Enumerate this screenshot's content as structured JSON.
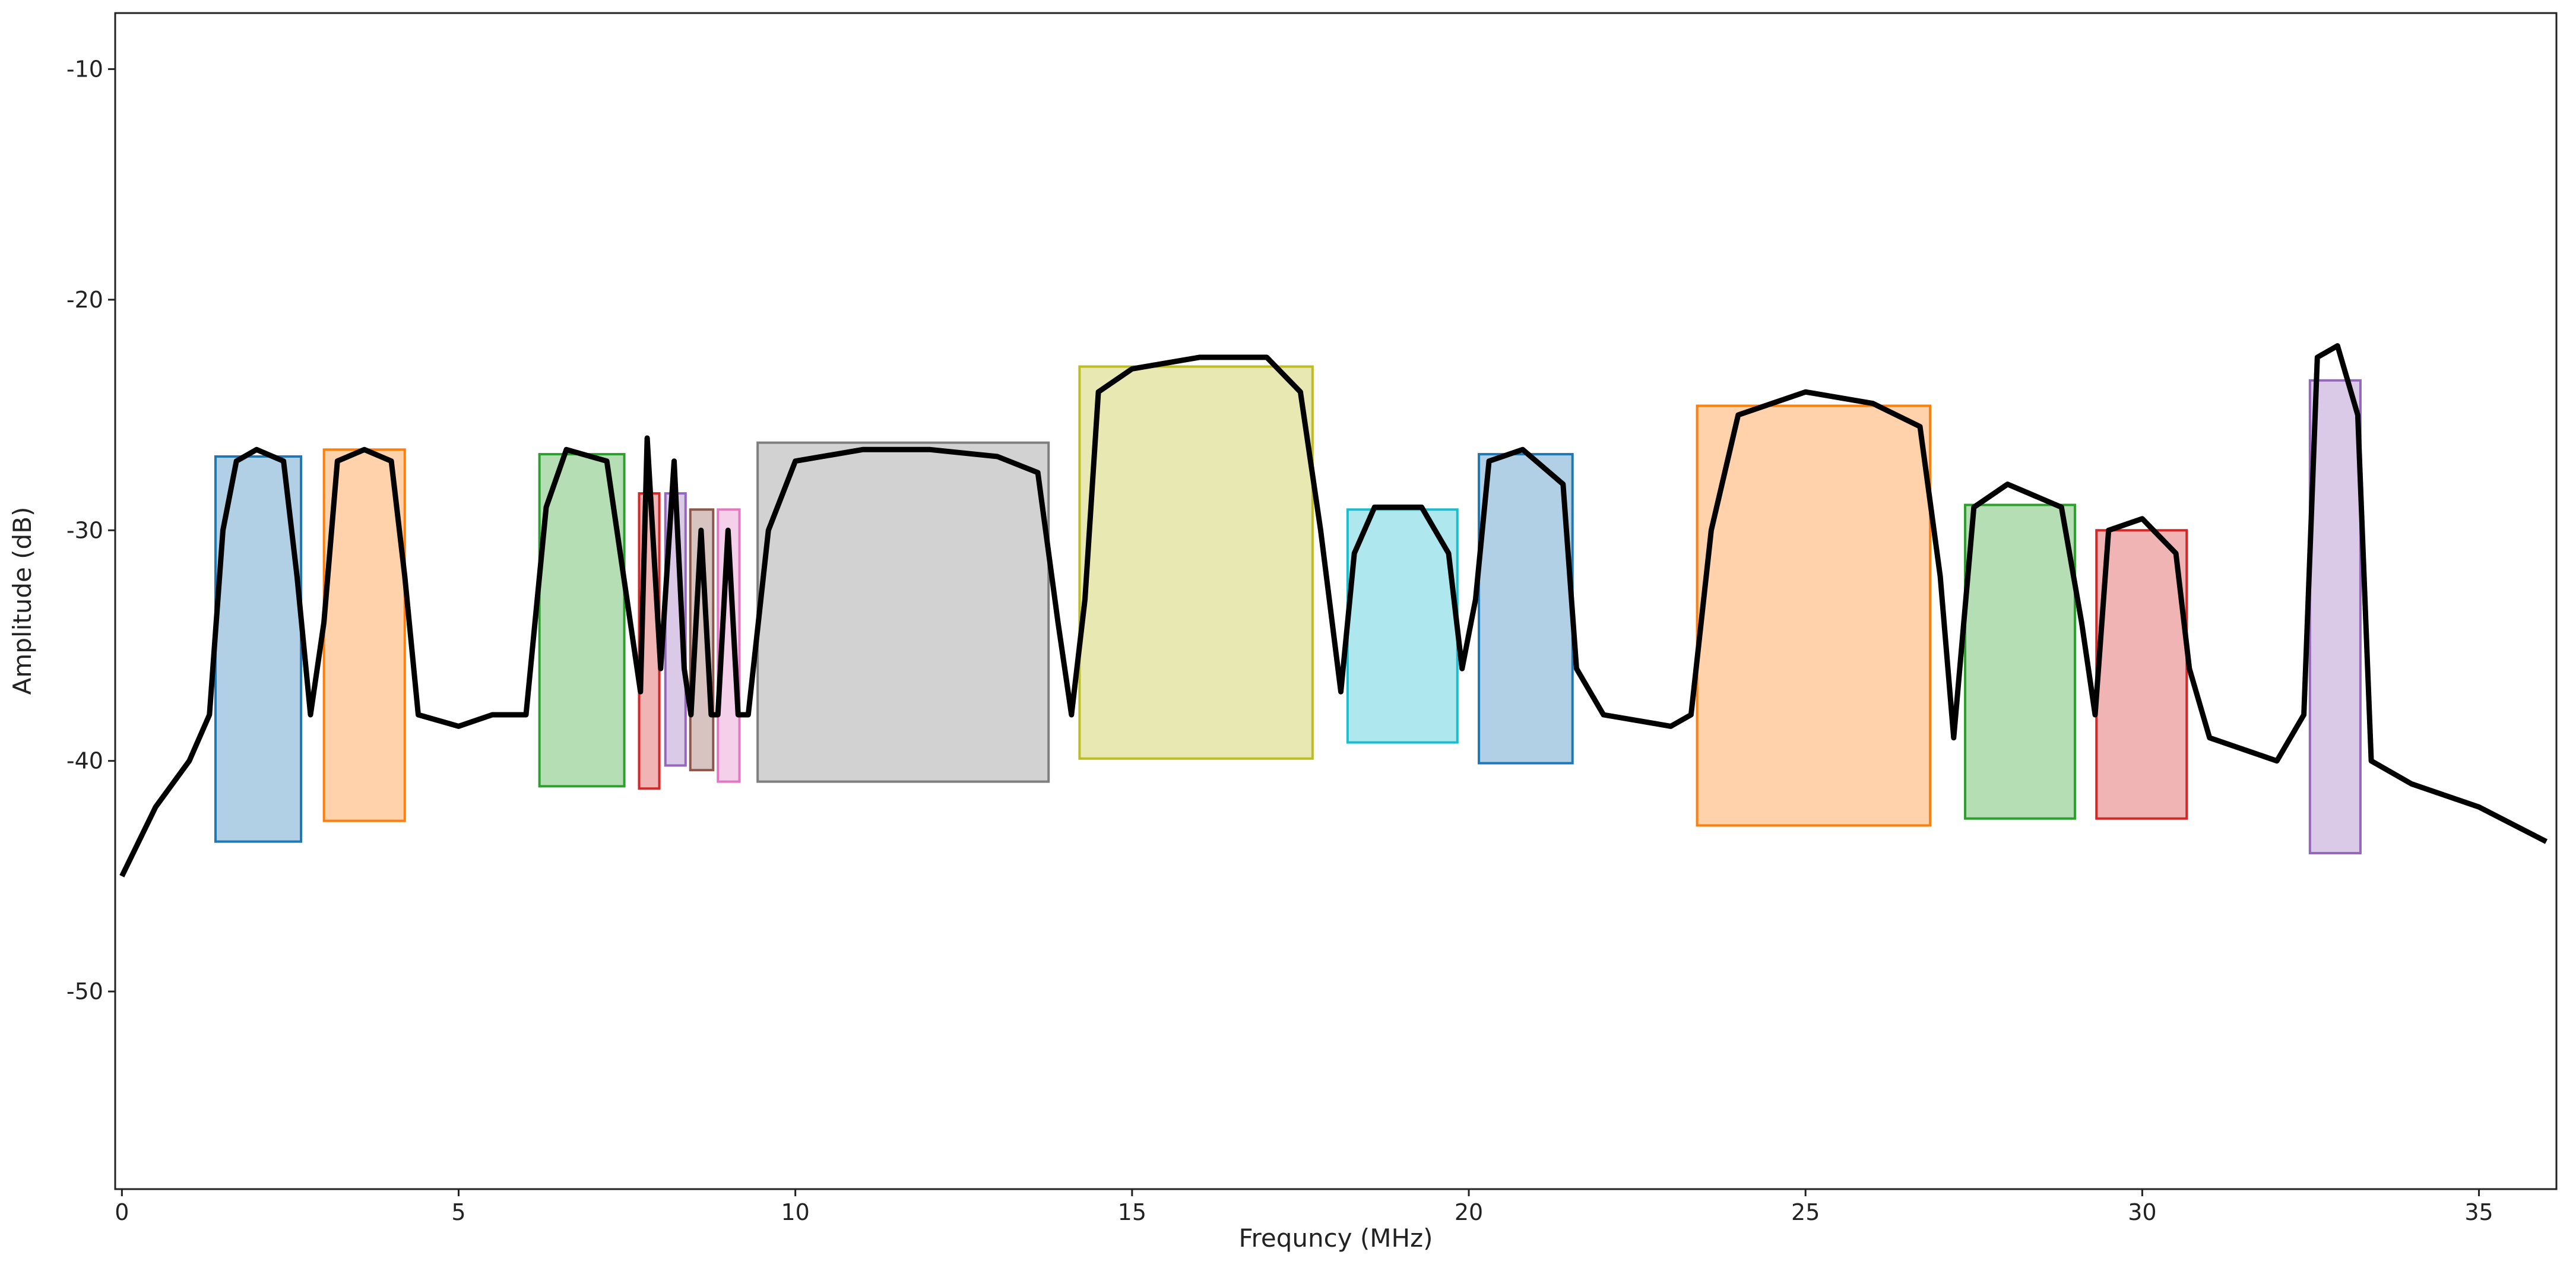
{
  "chart_data": {
    "type": "line",
    "xlabel": "Frequncy (MHz)",
    "ylabel": "Amplitude (dB)",
    "xlim": [
      -0.1,
      36.15
    ],
    "ylim": [
      -58.57,
      -7.57
    ],
    "xticks": [
      0,
      5,
      10,
      15,
      20,
      25,
      30,
      35
    ],
    "yticks": [
      -10,
      -20,
      -30,
      -40,
      -50
    ],
    "color": "#000000",
    "x": [
      0,
      0.5,
      1.0,
      1.3,
      1.5,
      1.7,
      2.0,
      2.4,
      2.6,
      2.8,
      3.0,
      3.2,
      3.6,
      4.0,
      4.2,
      4.4,
      5,
      5.5,
      6.0,
      6.3,
      6.6,
      7.2,
      7.5,
      7.7,
      7.8,
      8.0,
      8.2,
      8.35,
      8.45,
      8.6,
      8.75,
      8.85,
      9.0,
      9.15,
      9.3,
      9.6,
      10,
      11,
      12,
      13,
      13.6,
      13.9,
      14.1,
      14.3,
      14.5,
      15,
      16,
      17,
      17.5,
      17.8,
      18.1,
      18.3,
      18.6,
      19.3,
      19.7,
      19.9,
      20.1,
      20.3,
      20.8,
      21.4,
      21.6,
      22,
      23,
      23.3,
      23.6,
      24,
      25,
      26,
      26.7,
      27.0,
      27.2,
      27.5,
      28,
      28.8,
      29.1,
      29.3,
      29.5,
      30,
      30.5,
      30.7,
      31,
      32,
      32.4,
      32.6,
      32.9,
      33.2,
      33.4,
      34,
      35,
      36
    ],
    "values": [
      -45,
      -42,
      -40,
      -38,
      -30,
      -27,
      -26.5,
      -27,
      -32,
      -38,
      -34,
      -27,
      -26.5,
      -27,
      -32,
      -38,
      -38.5,
      -38,
      -38,
      -29,
      -26.5,
      -27,
      -33,
      -37,
      -26,
      -36,
      -27,
      -36,
      -38,
      -30,
      -38,
      -38,
      -30,
      -38,
      -38,
      -30,
      -27,
      -26.5,
      -26.5,
      -26.8,
      -27.5,
      -34,
      -38,
      -33,
      -24,
      -23,
      -22.5,
      -22.5,
      -24,
      -30,
      -37,
      -31,
      -29,
      -29,
      -31,
      -36,
      -33,
      -27,
      -26.5,
      -28,
      -36,
      -38,
      -38.5,
      -38,
      -30,
      -25,
      -24,
      -24.5,
      -25.5,
      -32,
      -39,
      -29,
      -28,
      -29,
      -34,
      -38,
      -30,
      -29.5,
      -31,
      -36,
      -39,
      -40,
      -38,
      -22.5,
      -22,
      -25,
      -40,
      -41,
      -42,
      -43.5
    ],
    "boxes": [
      {
        "x": [
          1.39,
          2.66
        ],
        "y": [
          -43.5,
          -26.8
        ],
        "color": "#1f77b4"
      },
      {
        "x": [
          3.0,
          4.2
        ],
        "y": [
          -42.6,
          -26.5
        ],
        "color": "#ff7f0e"
      },
      {
        "x": [
          6.2,
          7.46
        ],
        "y": [
          -41.1,
          -26.7
        ],
        "color": "#2ca02c"
      },
      {
        "x": [
          7.68,
          7.98
        ],
        "y": [
          -41.2,
          -28.4
        ],
        "color": "#d62728"
      },
      {
        "x": [
          8.07,
          8.37
        ],
        "y": [
          -40.2,
          -28.4
        ],
        "color": "#9467bd"
      },
      {
        "x": [
          8.44,
          8.78
        ],
        "y": [
          -40.4,
          -29.1
        ],
        "color": "#8c564b"
      },
      {
        "x": [
          8.85,
          9.17
        ],
        "y": [
          -40.9,
          -29.1
        ],
        "color": "#e377c2"
      },
      {
        "x": [
          9.44,
          13.76
        ],
        "y": [
          -40.9,
          -26.2
        ],
        "color": "#7f7f7f"
      },
      {
        "x": [
          14.22,
          17.68
        ],
        "y": [
          -39.9,
          -22.9
        ],
        "color": "#bcbd22"
      },
      {
        "x": [
          18.2,
          19.83
        ],
        "y": [
          -39.2,
          -29.1
        ],
        "color": "#17becf"
      },
      {
        "x": [
          20.15,
          21.54
        ],
        "y": [
          -40.1,
          -26.7
        ],
        "color": "#1f77b4"
      },
      {
        "x": [
          23.39,
          26.85
        ],
        "y": [
          -42.8,
          -24.6
        ],
        "color": "#ff7f0e"
      },
      {
        "x": [
          27.37,
          29.0
        ],
        "y": [
          -42.5,
          -28.9
        ],
        "color": "#2ca02c"
      },
      {
        "x": [
          29.32,
          30.66
        ],
        "y": [
          -42.5,
          -30.0
        ],
        "color": "#d62728"
      },
      {
        "x": [
          32.49,
          33.24
        ],
        "y": [
          -44.0,
          -23.5
        ],
        "color": "#9467bd"
      }
    ]
  }
}
